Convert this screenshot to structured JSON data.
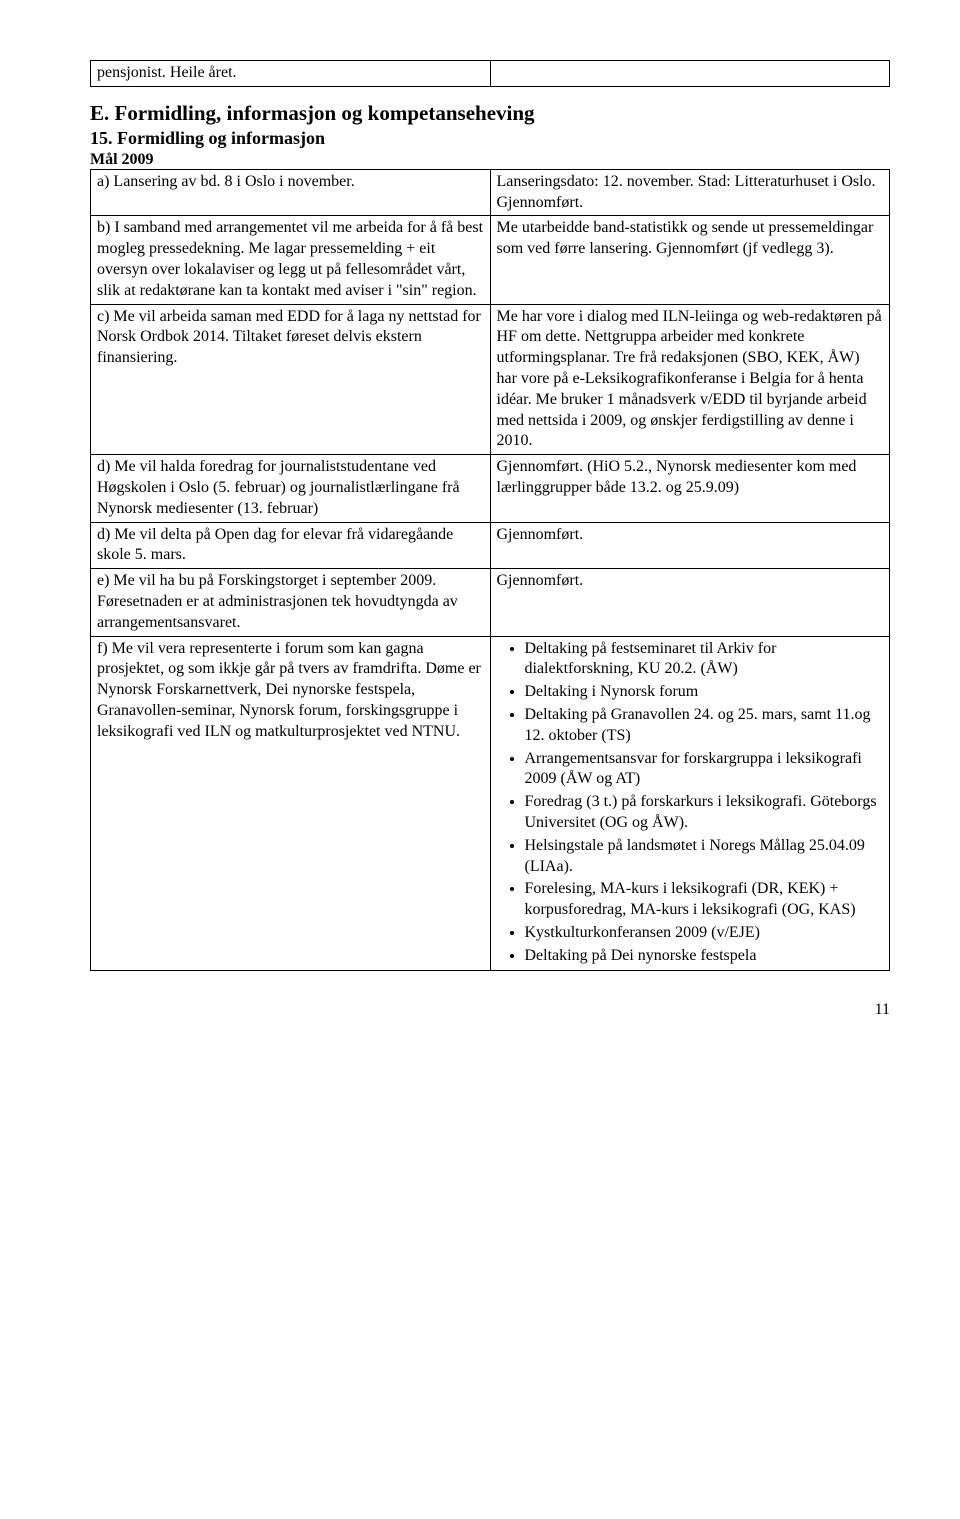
{
  "topTable": {
    "left": "pensjonist. Heile året.",
    "right": ""
  },
  "sectionE": {
    "heading": "E. Formidling, informasjon og kompetanseheving",
    "subheading": "15. Formidling og informasjon",
    "mal": "Mål 2009"
  },
  "rows": [
    {
      "left": "a) Lansering av bd. 8 i Oslo i november.",
      "right": "Lanseringsdato: 12. november. Stad: Litteraturhuset i Oslo. Gjennomført."
    },
    {
      "left": "b) I samband med arrangementet vil me arbeida for å få best mogleg pressedekning. Me lagar pressemelding + eit oversyn over lokalaviser og legg ut på fellesområdet vårt, slik at redaktørane kan ta kontakt med aviser i \"sin\" region.",
      "right": "Me utarbeidde band-statistikk og sende ut pressemeldingar som ved førre lansering. Gjennomført (jf vedlegg 3)."
    },
    {
      "left": "c) Me vil arbeida saman med EDD for å laga ny nettstad for Norsk Ordbok 2014. Tiltaket føreset delvis ekstern finansiering.",
      "right": "Me har vore i dialog med ILN-leiinga og web-redaktøren på HF om dette. Nettgruppa arbeider med konkrete utformingsplanar. Tre frå redaksjonen (SBO, KEK, ÅW) har vore på e-Leksikografikonferanse i Belgia for å henta idéar. Me bruker 1 månadsverk v/EDD til byrjande arbeid med nettsida i 2009, og ønskjer ferdigstilling av denne i 2010."
    },
    {
      "left": "d) Me vil halda foredrag for journaliststudentane ved Høgskolen i Oslo (5. februar) og journalistlærlingane frå Nynorsk mediesenter (13. februar)",
      "right": "Gjennomført. (HiO 5.2., Nynorsk mediesenter kom med lærlinggrupper både 13.2. og 25.9.09)"
    },
    {
      "left": "d) Me vil delta på Open dag for elevar frå vidaregåande skole 5. mars.",
      "right": "Gjennomført."
    },
    {
      "left": "e) Me vil ha bu på Forskingstorget i september 2009. Føresetnaden er at administrasjonen tek hovudtyngda av arrangementsansvaret.",
      "right": "Gjennomført."
    },
    {
      "left": "f) Me vil vera representerte i forum som kan gagna prosjektet, og som ikkje går på tvers av framdrifta. Døme er Nynorsk Forskarnettverk, Dei nynorske festspela, Granavollen-seminar, Nynorsk forum, forskingsgruppe i leksikografi ved ILN og matkulturprosjektet ved NTNU.",
      "rightList": [
        "Deltaking på festseminaret til Arkiv for dialektforskning, KU 20.2. (ÅW)",
        "Deltaking i Nynorsk forum",
        "Deltaking på Granavollen 24. og 25. mars, samt 11.og 12. oktober (TS)",
        "Arrangementsansvar for forskargruppa i leksikografi 2009 (ÅW og AT)",
        "Foredrag (3 t.) på forskarkurs i leksikografi. Göteborgs Universitet (OG og ÅW).",
        "Helsingstale på landsmøtet i Noregs Mållag 25.04.09 (LIAa).",
        "Forelesing, MA-kurs i leksikografi (DR, KEK) + korpusforedrag, MA-kurs i leksikografi (OG, KAS)",
        "Kystkulturkonferansen 2009 (v/EJE)",
        "Deltaking på Dei nynorske festspela"
      ]
    }
  ],
  "pageNumber": "11"
}
